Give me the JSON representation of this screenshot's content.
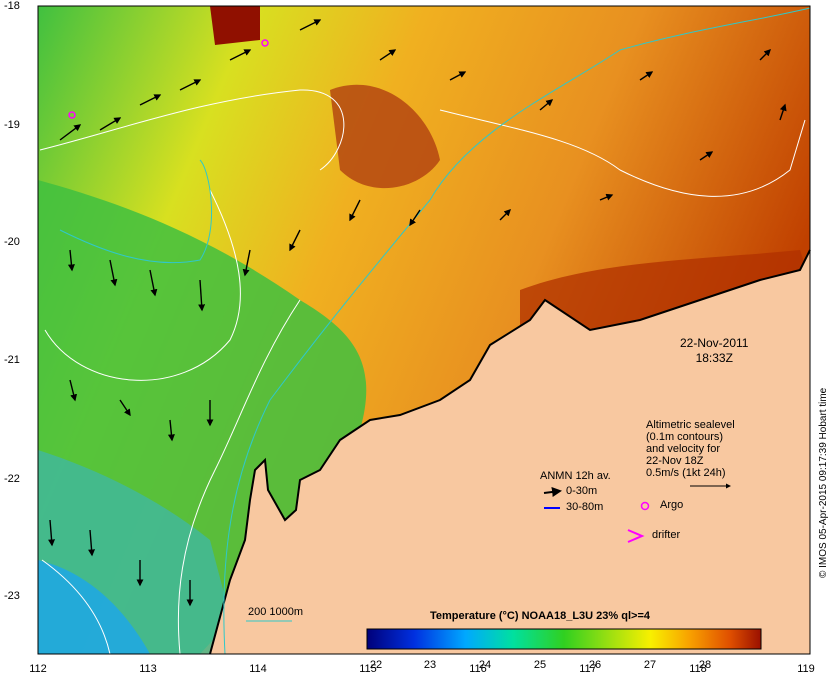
{
  "axes": {
    "x_ticks": [
      "112",
      "113",
      "114",
      "115",
      "116",
      "117",
      "118",
      "119"
    ],
    "y_ticks": [
      "-18",
      "-19",
      "-20",
      "-21",
      "-22",
      "-23"
    ]
  },
  "annotation": {
    "date": "22-Nov-2011",
    "time": "18:33Z"
  },
  "altimetry": {
    "line1": "Altimetric sealevel",
    "line2": "(0.1m contours)",
    "line3": "and velocity for",
    "line4": "22-Nov 18Z",
    "line5": "0.5m/s (1kt 24h)"
  },
  "legend": {
    "anmn_title": "ANMN 12h av.",
    "depth_shallow": "0-30m",
    "depth_deep": "30-80m",
    "argo": "Argo",
    "drifter": "drifter",
    "isobaths": "200  1000m",
    "colors": {
      "shallow": "#000000",
      "deep": "#0000ff",
      "argo": "#ff00ff",
      "drifter": "#ff00ff",
      "isobath": "#30c8c8",
      "land": "#f8c8a0"
    }
  },
  "colorbar": {
    "title": "Temperature (°C) NOAA18_L3U 23% ql>=4",
    "ticks": [
      "22",
      "23",
      "24",
      "25",
      "26",
      "27",
      "28"
    ]
  },
  "credit": "© IMOS 05-Apr-2015 09:17:39 Hobart time"
}
